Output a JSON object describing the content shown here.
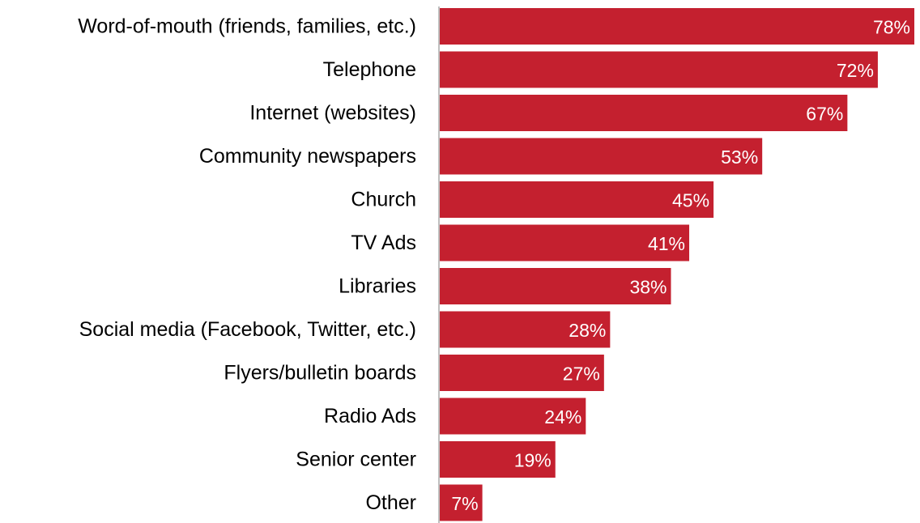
{
  "chart_data": {
    "type": "bar",
    "orientation": "horizontal",
    "categories": [
      "Word-of-mouth (friends, families, etc.)",
      "Telephone",
      "Internet (websites)",
      "Community newspapers",
      "Church",
      "TV Ads",
      "Libraries",
      "Social media (Facebook, Twitter, etc.)",
      "Flyers/bulletin boards",
      "Radio Ads",
      "Senior center",
      "Other"
    ],
    "values": [
      78,
      72,
      67,
      53,
      45,
      41,
      38,
      28,
      27,
      24,
      19,
      7
    ],
    "value_labels": [
      "78%",
      "72%",
      "67%",
      "53%",
      "45%",
      "41%",
      "38%",
      "28%",
      "27%",
      "24%",
      "19%",
      "7%"
    ],
    "value_unit": "%",
    "xlim": [
      0,
      78
    ],
    "grid": false,
    "legend": "none",
    "bar_color": "#c4202f",
    "label_color": "#000000",
    "value_label_color": "#ffffff",
    "axis_color": "#bfbfbf"
  }
}
